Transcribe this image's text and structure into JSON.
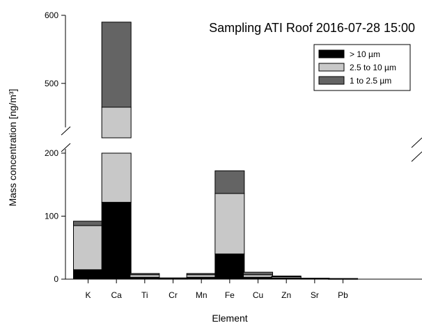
{
  "chart_data": {
    "type": "bar",
    "stacked": true,
    "title": "Sampling ATI Roof 2016-07-28 15:00",
    "xlabel": "Element",
    "ylabel": "Mass concentration [ng/m³]",
    "categories": [
      "K",
      "Ca",
      "Ti",
      "Cr",
      "Mn",
      "Fe",
      "Cu",
      "Zn",
      "Sr",
      "Pb"
    ],
    "series": [
      {
        "name": "> 10 µm",
        "color": "#000000",
        "values": [
          15,
          122,
          3,
          0.5,
          3,
          40,
          3,
          2,
          0.5,
          0.3
        ]
      },
      {
        "name": "2.5 to 10 µm",
        "color": "#c8c8c8",
        "values": [
          70,
          343,
          4,
          1,
          4,
          96,
          4,
          2,
          0.7,
          0.5
        ]
      },
      {
        "name": "1 to 2.5 µm",
        "color": "#646464",
        "values": [
          7,
          125,
          2,
          0.5,
          2,
          36,
          4,
          1,
          0.3,
          0.2
        ]
      }
    ],
    "y_axis_break": {
      "lower_range": [
        0,
        200
      ],
      "upper_range": [
        420,
        600
      ]
    },
    "yticks": [
      0,
      100,
      200,
      500,
      600
    ],
    "legend_position": "top-right",
    "grid": false
  }
}
